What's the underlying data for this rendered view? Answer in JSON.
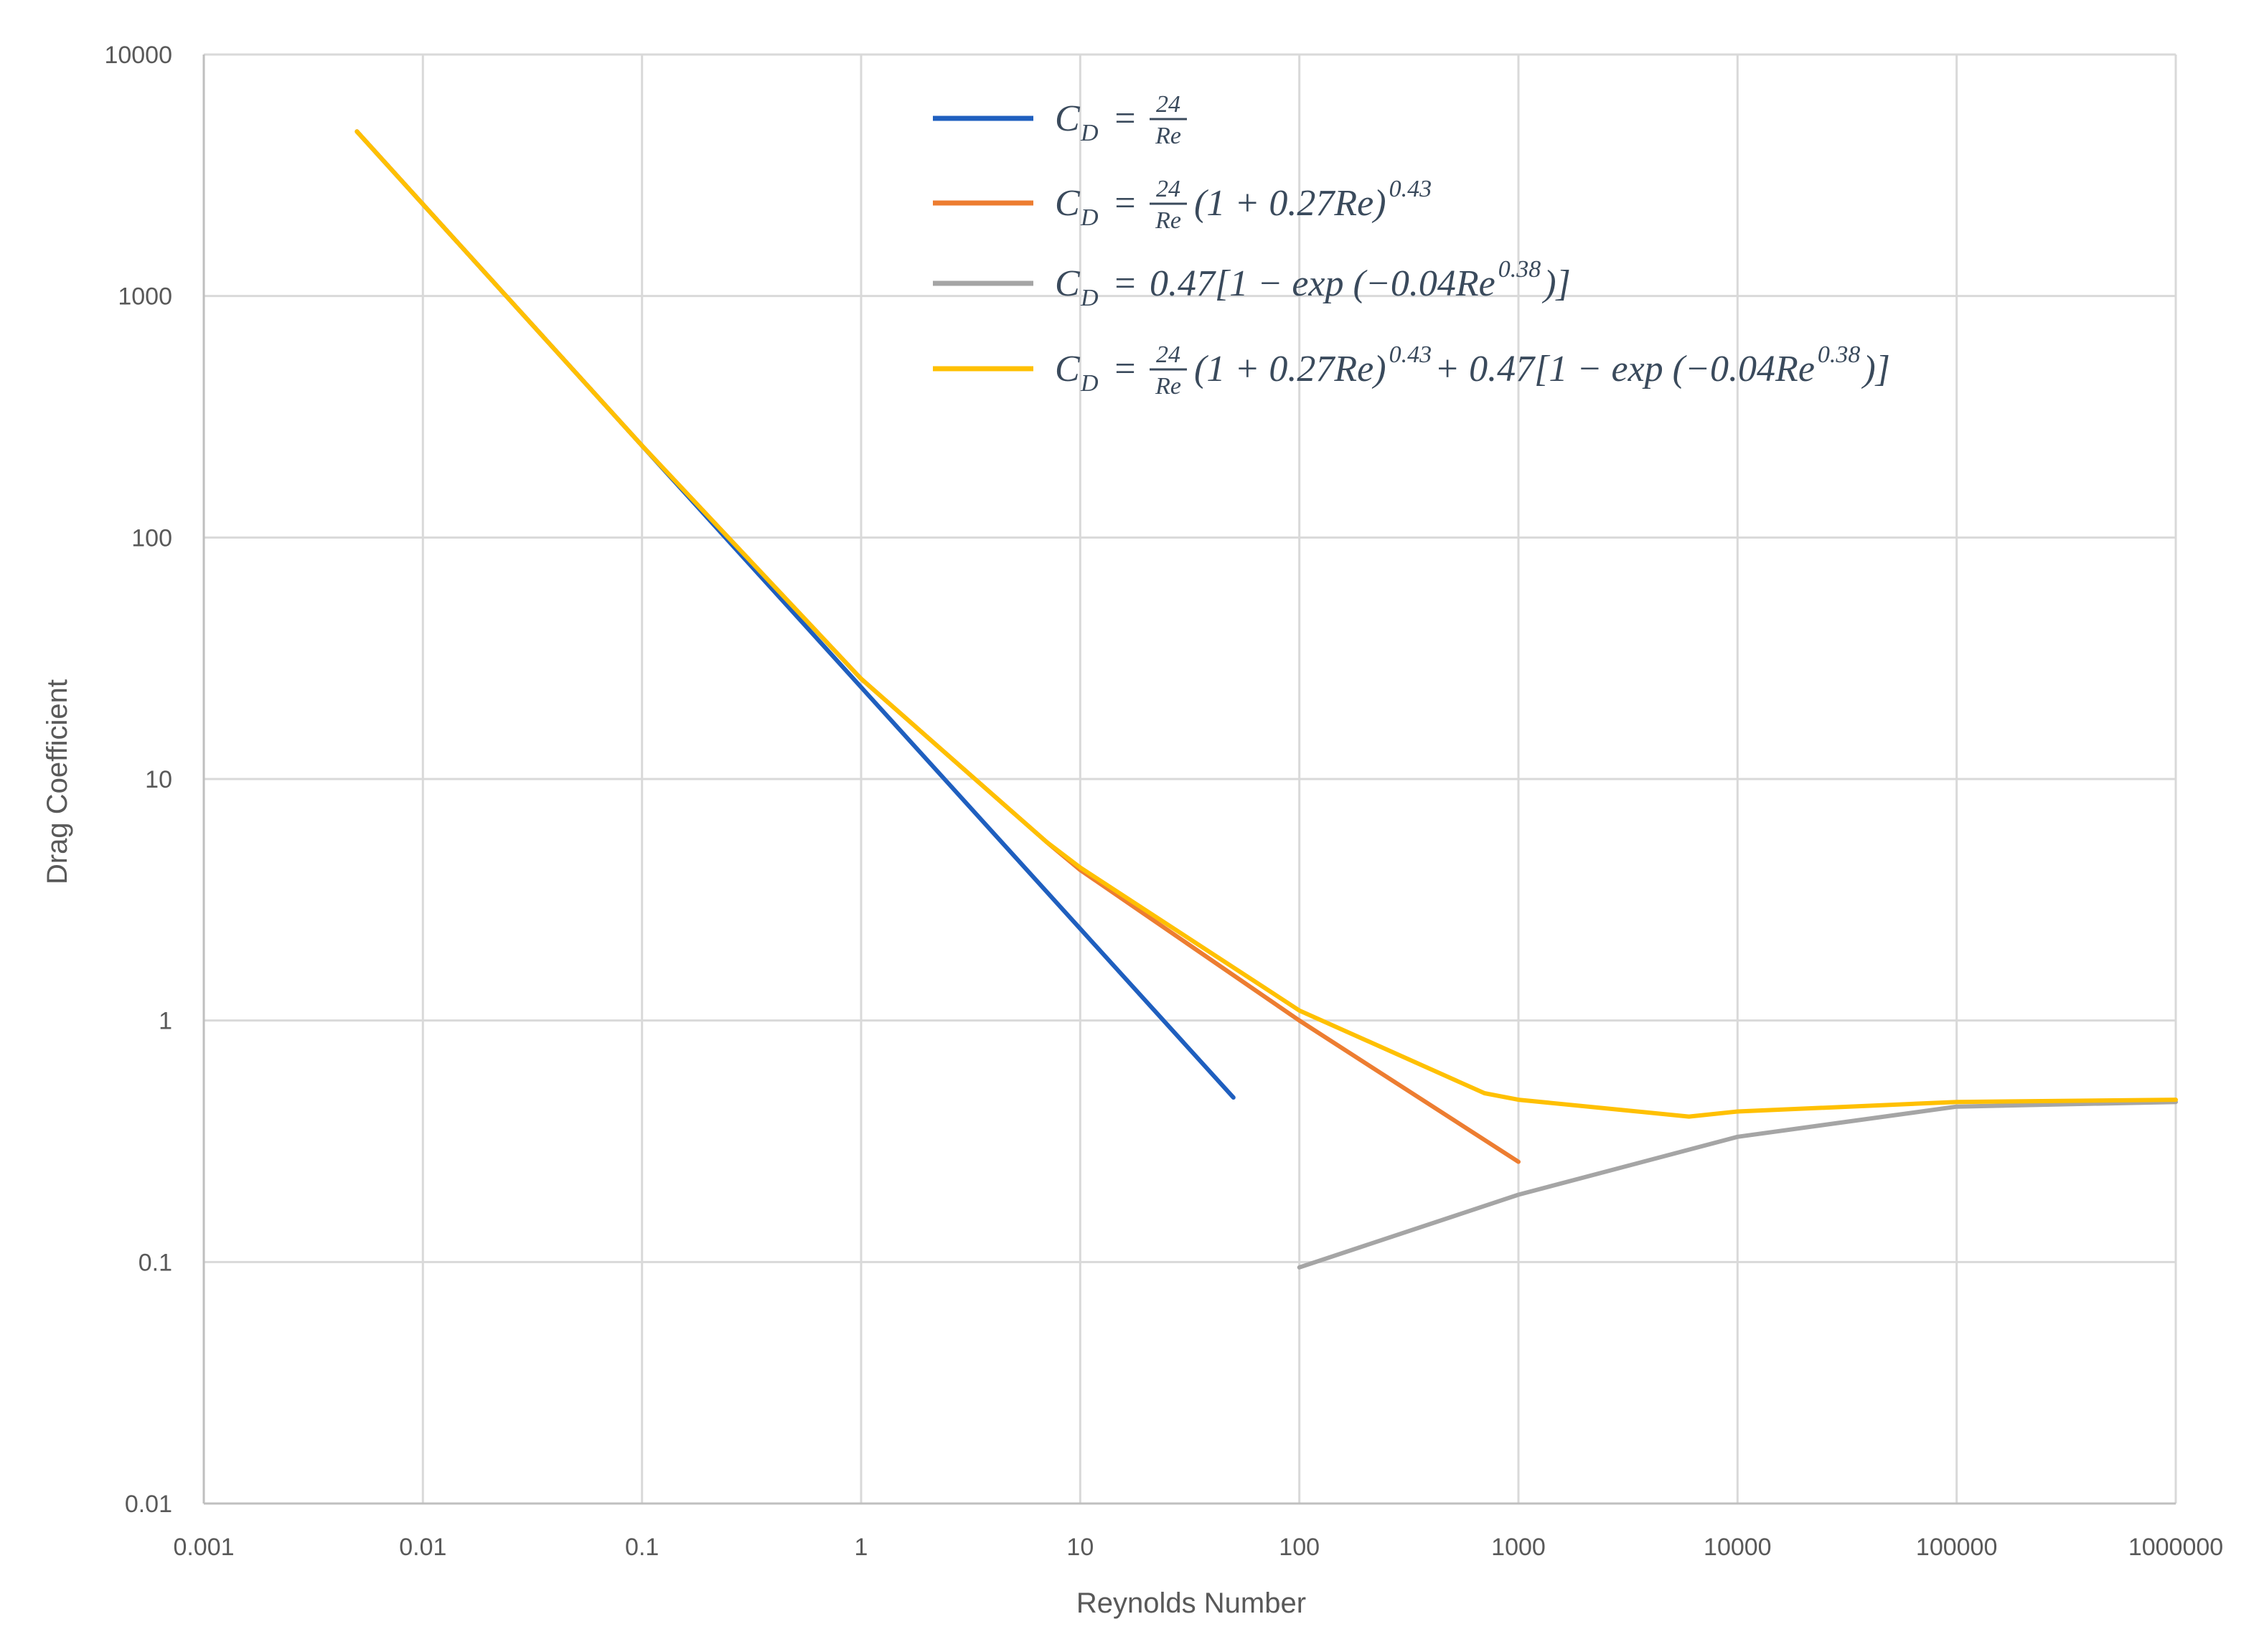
{
  "chart_data": {
    "type": "line",
    "title": "",
    "xlabel": "Reynolds Number",
    "ylabel": "Drag Coefficient",
    "xscale": "log",
    "yscale": "log",
    "xlim": [
      0.001,
      1000000
    ],
    "ylim": [
      0.01,
      10000
    ],
    "grid": true,
    "legend_position": "top-right",
    "x_ticks": [
      "0.001",
      "0.01",
      "0.1",
      "1",
      "10",
      "100",
      "1000",
      "10000",
      "100000",
      "1000000"
    ],
    "y_ticks": [
      "0.01",
      "0.1",
      "1",
      "10",
      "100",
      "1000",
      "10000"
    ],
    "series": [
      {
        "name": "C_D = 24/Re",
        "color": "#1f5fbf",
        "x": [
          0.005,
          0.01,
          0.1,
          1,
          10,
          50
        ],
        "y": [
          4800,
          2400,
          240,
          24,
          2.4,
          0.48
        ]
      },
      {
        "name": "C_D = 24/Re (1 + 0.27Re)^0.43",
        "color": "#ed7d31",
        "x": [
          0.005,
          0.01,
          0.1,
          1,
          7,
          10,
          100,
          1000
        ],
        "y": [
          4800,
          2400,
          240,
          26,
          5.5,
          4.2,
          1.0,
          0.26
        ]
      },
      {
        "name": "C_D = 0.47[1 − exp(−0.04Re^0.38)]",
        "color": "#a5a5a5",
        "x": [
          100,
          1000,
          10000,
          100000,
          1000000
        ],
        "y": [
          0.095,
          0.19,
          0.33,
          0.44,
          0.46
        ]
      },
      {
        "name": "C_D = 24/Re (1 + 0.27Re)^0.43 + 0.47[1 − exp(−0.04Re^0.38)]",
        "color": "#ffc000",
        "x": [
          0.005,
          0.01,
          0.1,
          1,
          7,
          10,
          100,
          700,
          1000,
          6000,
          10000,
          100000,
          1000000
        ],
        "y": [
          4800,
          2400,
          240,
          26,
          5.5,
          4.3,
          1.1,
          0.5,
          0.47,
          0.4,
          0.42,
          0.46,
          0.47
        ]
      }
    ]
  },
  "legend": {
    "items": [
      {
        "lhs": "C",
        "sub": "D",
        "eq": "=",
        "frac_num": "24",
        "frac_den": "Re",
        "rest": "",
        "sup": "",
        "tail": ""
      },
      {
        "lhs": "C",
        "sub": "D",
        "eq": "=",
        "frac_num": "24",
        "frac_den": "Re",
        "rest": "(1 + 0.27Re)",
        "sup": "0.43",
        "tail": ""
      },
      {
        "lhs": "C",
        "sub": "D",
        "eq": "=",
        "frac_num": "",
        "frac_den": "",
        "rest": "0.47[1 − exp (−0.04Re",
        "sup": "0.38",
        "tail": ")]"
      },
      {
        "lhs": "C",
        "sub": "D",
        "eq": "=",
        "frac_num": "24",
        "frac_den": "Re",
        "rest": "(1 + 0.27Re)",
        "sup": "0.43",
        "tail": " + 0.47[1 − exp (−0.04Re",
        "sup2": "0.38",
        "tail2": ")]"
      }
    ]
  }
}
